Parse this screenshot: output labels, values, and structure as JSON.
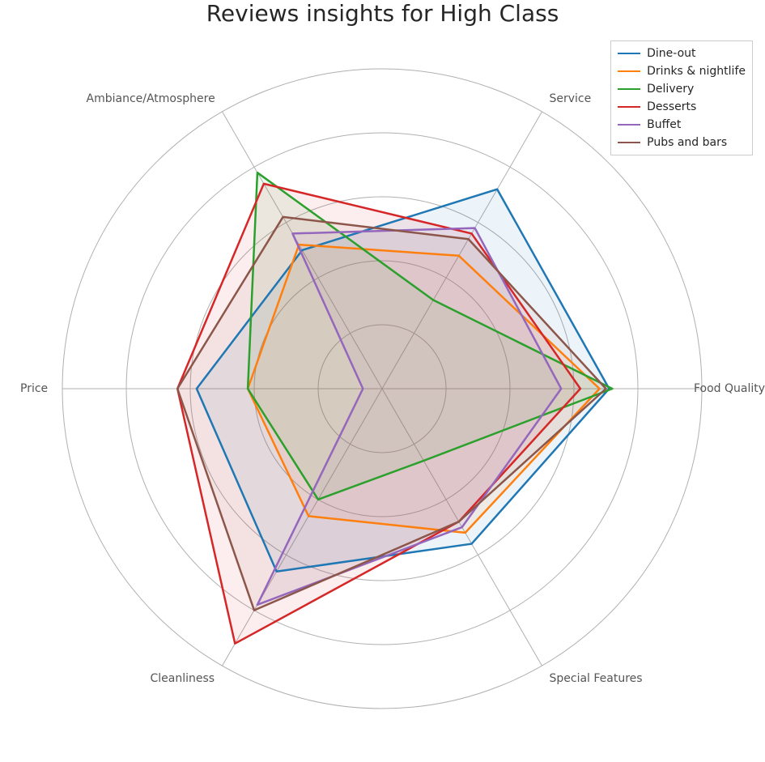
{
  "title": "Reviews insights for High Class",
  "chart": {
    "type": "radar",
    "axes": [
      "Food Quality",
      "Service",
      "Ambiance/Atmosphere",
      "Price",
      "Cleanliness",
      "Special Features"
    ],
    "rmax": 5,
    "ring_values": [
      1,
      2,
      3,
      4,
      5
    ],
    "grid_color": "#b0b0b0",
    "spoke_color": "#b0b0b0",
    "background_color": "#ffffff",
    "line_width": 2.5,
    "fill_opacity": 0.08,
    "axis_label_fontsize": 14,
    "axis_label_color": "#555555",
    "series": [
      {
        "name": "Dine-out",
        "color": "#1f77b4",
        "values": [
          3.55,
          3.6,
          2.5,
          2.9,
          3.3,
          2.8
        ]
      },
      {
        "name": "Drinks & nightlife",
        "color": "#ff7f0e",
        "values": [
          3.4,
          2.4,
          2.6,
          2.1,
          2.3,
          2.6
        ]
      },
      {
        "name": "Delivery",
        "color": "#2ca02c",
        "values": [
          3.6,
          1.6,
          3.9,
          2.1,
          2.0,
          1.3
        ]
      },
      {
        "name": "Desserts",
        "color": "#d62728",
        "values": [
          3.1,
          2.8,
          3.7,
          3.2,
          4.6,
          2.4
        ]
      },
      {
        "name": "Buffet",
        "color": "#9467bd",
        "values": [
          2.8,
          2.9,
          2.8,
          0.3,
          3.9,
          2.5
        ]
      },
      {
        "name": "Pubs and bars",
        "color": "#8c564b",
        "values": [
          3.5,
          2.7,
          3.1,
          3.2,
          4.0,
          2.4
        ]
      }
    ]
  },
  "legend": {
    "position": "upper_right",
    "fontsize": 14,
    "border_color": "#cccccc"
  },
  "title_fontsize": 28
}
